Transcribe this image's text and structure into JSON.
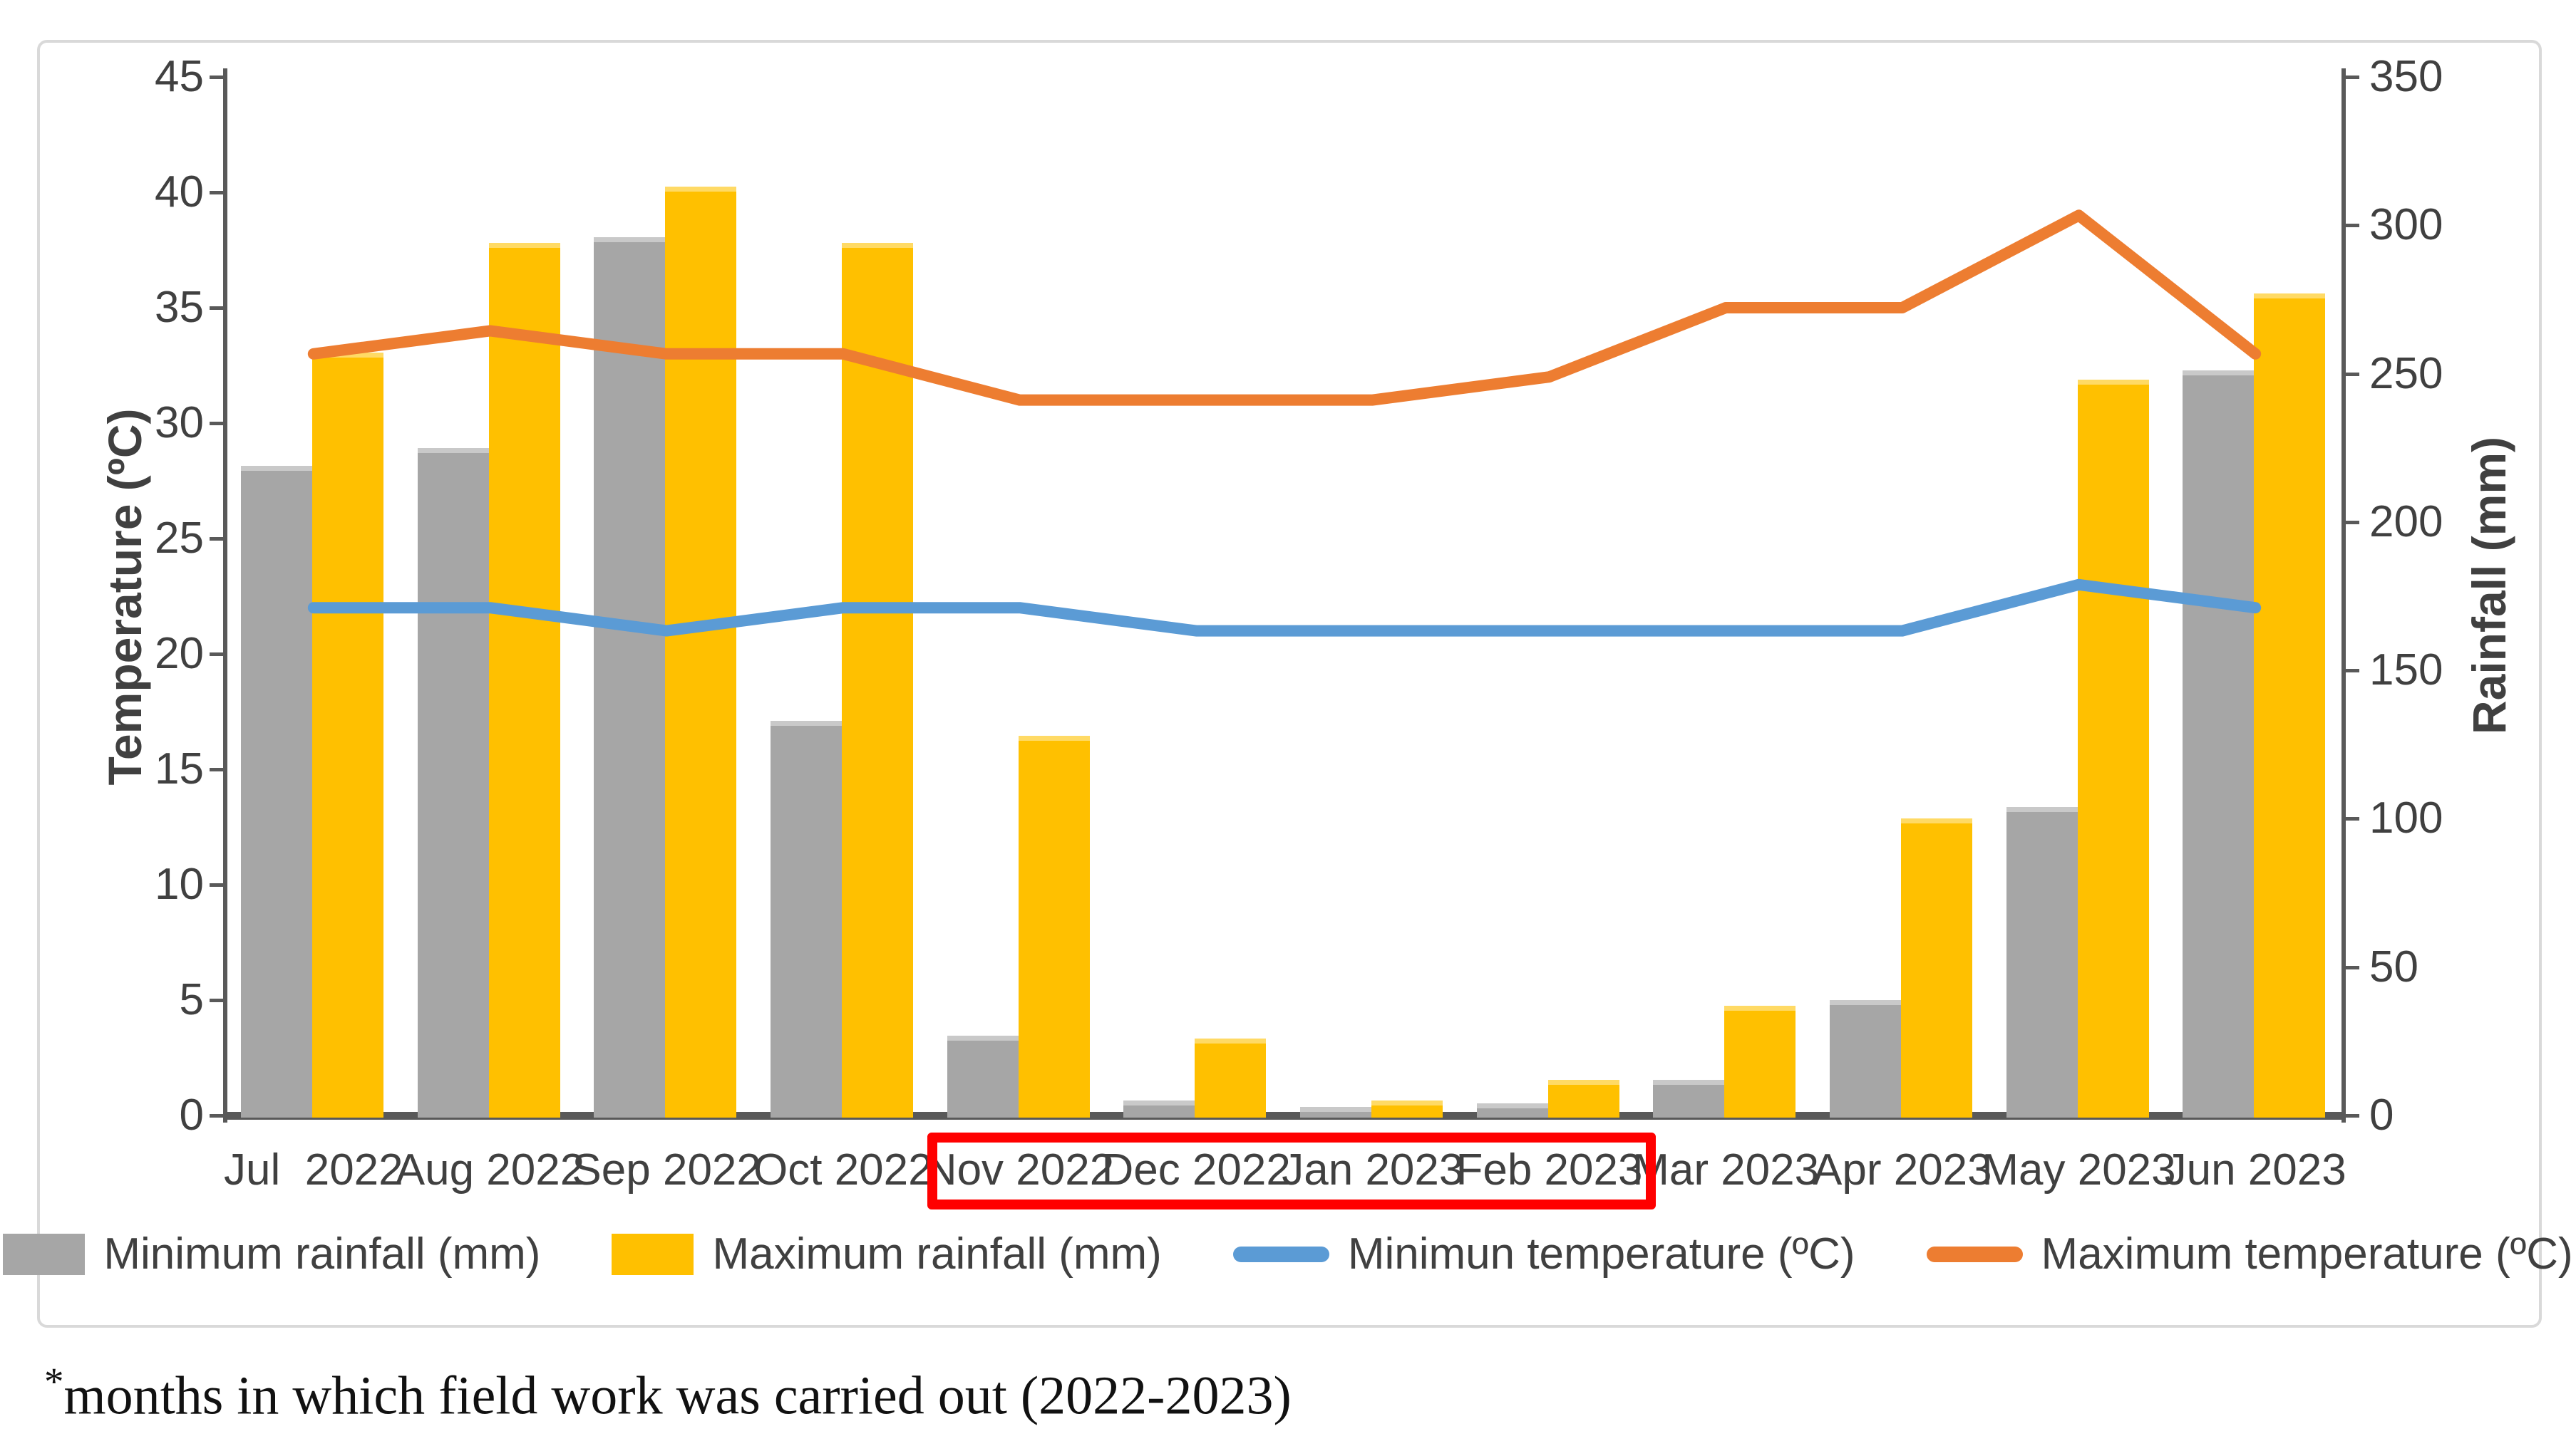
{
  "figure": {
    "footnote_star": "*",
    "footnote_text": "months in which field work was carried out (2022-2023)"
  },
  "colors": {
    "frame_border": "#D9D9D9",
    "axis_line": "#595959",
    "axis_text": "#404040",
    "highlight_box": "#FF0000",
    "min_rainfall_bar": "#A6A6A6",
    "max_rainfall_bar": "#FFC000",
    "min_temp_line": "#5B9BD5",
    "max_temp_line": "#ED7D31"
  },
  "chart_data": {
    "type": "combo",
    "categories": [
      "Jul  2022",
      "Aug 2022",
      "Sep 2022",
      "Oct 2022",
      "Nov 2022",
      "Dec 2022",
      "Jan 2023",
      "Feb 2023",
      "Mar 2023",
      "Apr 2023",
      "May 2023",
      "Jun 2023"
    ],
    "series": [
      {
        "name": "Minimum rainfall (mm)",
        "type": "bar",
        "axis": "right",
        "color": "#A6A6A6",
        "cap": "cap-gray",
        "values": [
          219,
          225,
          296,
          133,
          27,
          5,
          3,
          4,
          12,
          39,
          104,
          251
        ]
      },
      {
        "name": "Maximum rainfall (mm)",
        "type": "bar",
        "axis": "right",
        "color": "#FFC000",
        "cap": "cap-yellow",
        "values": [
          257,
          294,
          313,
          294,
          128,
          26,
          5,
          12,
          37,
          100,
          248,
          277
        ]
      },
      {
        "name": "Minimun temperature (ºC)",
        "type": "line",
        "axis": "left",
        "color": "#5B9BD5",
        "values": [
          22,
          22,
          21,
          22,
          22,
          21,
          21,
          21,
          21,
          21,
          23,
          22
        ]
      },
      {
        "name": "Maximum temperature (ºC)",
        "type": "line",
        "axis": "left",
        "color": "#ED7D31",
        "values": [
          33,
          34,
          33,
          33,
          31,
          31,
          31,
          32,
          35,
          35,
          39,
          33
        ]
      }
    ],
    "left_axis": {
      "title": "Temperature (ºC)",
      "min": 0,
      "max": 45,
      "step": 5,
      "tick_labels": [
        "0",
        "5",
        "10",
        "15",
        "20",
        "25",
        "30",
        "35",
        "40",
        "45"
      ]
    },
    "right_axis": {
      "title": "Rainfall (mm)",
      "min": 0,
      "max": 350,
      "step": 50,
      "tick_labels": [
        "0",
        "50",
        "100",
        "150",
        "200",
        "250",
        "300",
        "350"
      ]
    },
    "highlight": {
      "months": [
        "Nov 2022",
        "Dec 2022",
        "Jan 2023",
        "Feb 2023"
      ],
      "from_index": 4,
      "to_index": 7,
      "color": "#FF0000"
    },
    "legend_position": "bottom",
    "grid": "off"
  }
}
